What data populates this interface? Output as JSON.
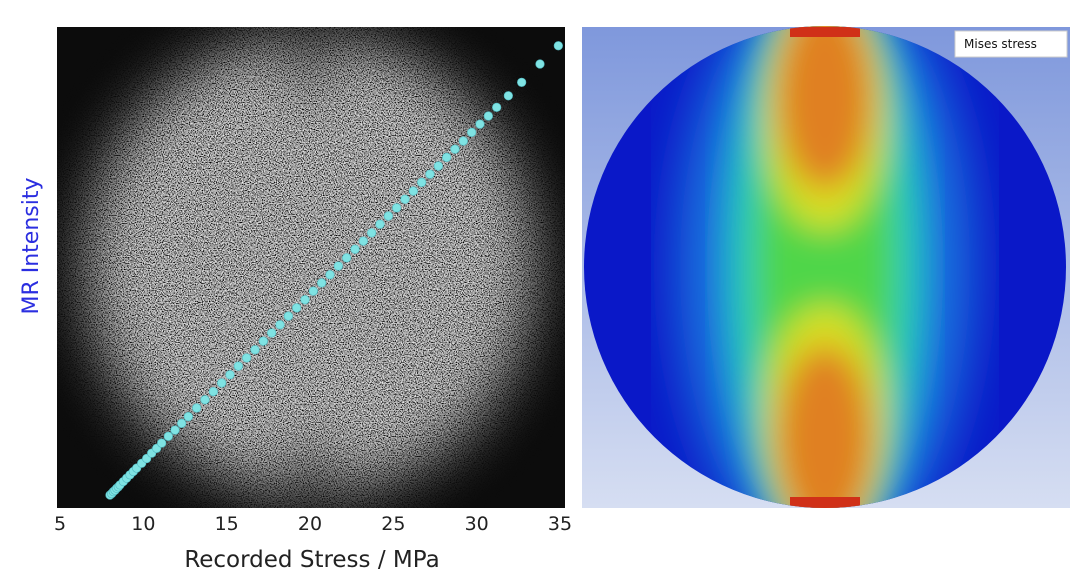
{
  "chart_data": {
    "type": "scatter",
    "x_label": "Recorded Stress / MPa",
    "y_label": "MR Intensity",
    "annotation": "Mises stress",
    "color": "#7fe3e3",
    "xlim": [
      5,
      35
    ],
    "xticks": [
      5,
      10,
      15,
      20,
      25,
      30,
      35
    ],
    "ylim": [
      0,
      1
    ],
    "x": [
      8.0,
      8.1,
      8.2,
      8.3,
      8.4,
      8.5,
      8.6,
      8.8,
      9.0,
      9.2,
      9.4,
      9.6,
      9.9,
      10.2,
      10.5,
      10.8,
      11.1,
      11.5,
      11.9,
      12.3,
      12.7,
      13.2,
      13.7,
      14.2,
      14.7,
      15.2,
      15.7,
      16.2,
      16.7,
      17.2,
      17.7,
      18.2,
      18.7,
      19.2,
      19.7,
      20.2,
      20.7,
      21.2,
      21.7,
      22.2,
      22.7,
      23.2,
      23.7,
      24.2,
      24.7,
      25.2,
      25.7,
      26.2,
      26.7,
      27.2,
      27.7,
      28.2,
      28.7,
      29.2,
      29.7,
      30.2,
      30.7,
      31.2,
      31.9,
      32.7,
      33.8,
      34.9
    ],
    "y": [
      0.027,
      0.03,
      0.034,
      0.037,
      0.041,
      0.044,
      0.048,
      0.055,
      0.062,
      0.069,
      0.076,
      0.083,
      0.093,
      0.103,
      0.114,
      0.124,
      0.135,
      0.149,
      0.162,
      0.176,
      0.19,
      0.208,
      0.225,
      0.242,
      0.26,
      0.277,
      0.295,
      0.312,
      0.329,
      0.347,
      0.364,
      0.381,
      0.399,
      0.416,
      0.433,
      0.451,
      0.468,
      0.485,
      0.503,
      0.52,
      0.538,
      0.555,
      0.572,
      0.59,
      0.607,
      0.624,
      0.642,
      0.659,
      0.677,
      0.694,
      0.711,
      0.729,
      0.746,
      0.763,
      0.781,
      0.798,
      0.815,
      0.833,
      0.857,
      0.885,
      0.923,
      0.961
    ]
  }
}
